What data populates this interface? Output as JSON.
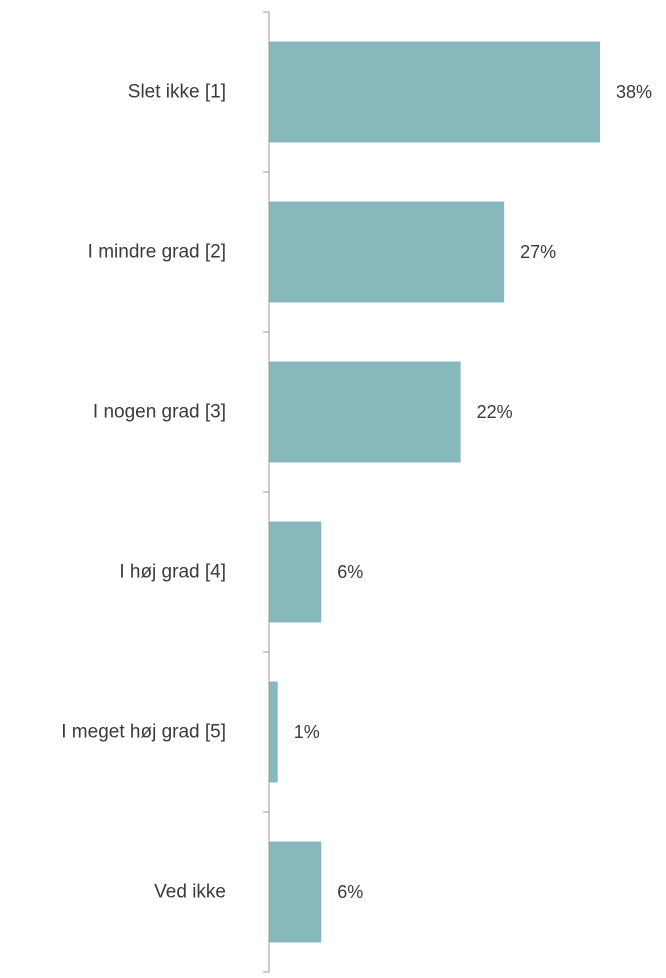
{
  "chart_data": {
    "type": "bar",
    "orientation": "horizontal",
    "categories": [
      "Slet ikke [1]",
      "I mindre grad [2]",
      "I nogen grad [3]",
      "I høj grad [4]",
      "I meget høj grad [5]",
      "Ved ikke"
    ],
    "values": [
      38,
      27,
      22,
      6,
      1,
      6
    ],
    "value_labels": [
      "38%",
      "27%",
      "22%",
      "6%",
      "1%",
      "6%"
    ],
    "unit": "%",
    "xlim": [
      0,
      45
    ],
    "grid": false,
    "legend": "none",
    "colors": {
      "bar": "#86b8bc",
      "axis": "#999999",
      "text": "#3a3a3a"
    }
  }
}
